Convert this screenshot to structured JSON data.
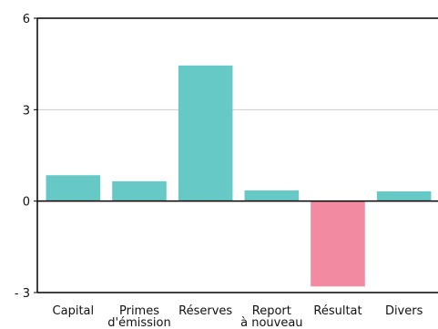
{
  "chart_data": {
    "type": "bar",
    "title": "",
    "xlabel": "",
    "ylabel": "",
    "categories": [
      [
        "Capital"
      ],
      [
        "Primes",
        "d'émission"
      ],
      [
        "Réserves"
      ],
      [
        "Report",
        "à nouveau"
      ],
      [
        "Résultat"
      ],
      [
        "Divers"
      ]
    ],
    "values": [
      0.85,
      0.65,
      4.45,
      0.35,
      -2.8,
      0.32
    ],
    "ylim": [
      -3,
      6
    ],
    "yticks": [
      6,
      3,
      0,
      -3
    ],
    "ytick_labels": [
      "6",
      "3",
      "0",
      "- 3"
    ],
    "grid": true,
    "colors": {
      "positive": "#66c9c6",
      "negative": "#f28aa2",
      "axis": "#000000",
      "grid": "#cccccc"
    }
  }
}
